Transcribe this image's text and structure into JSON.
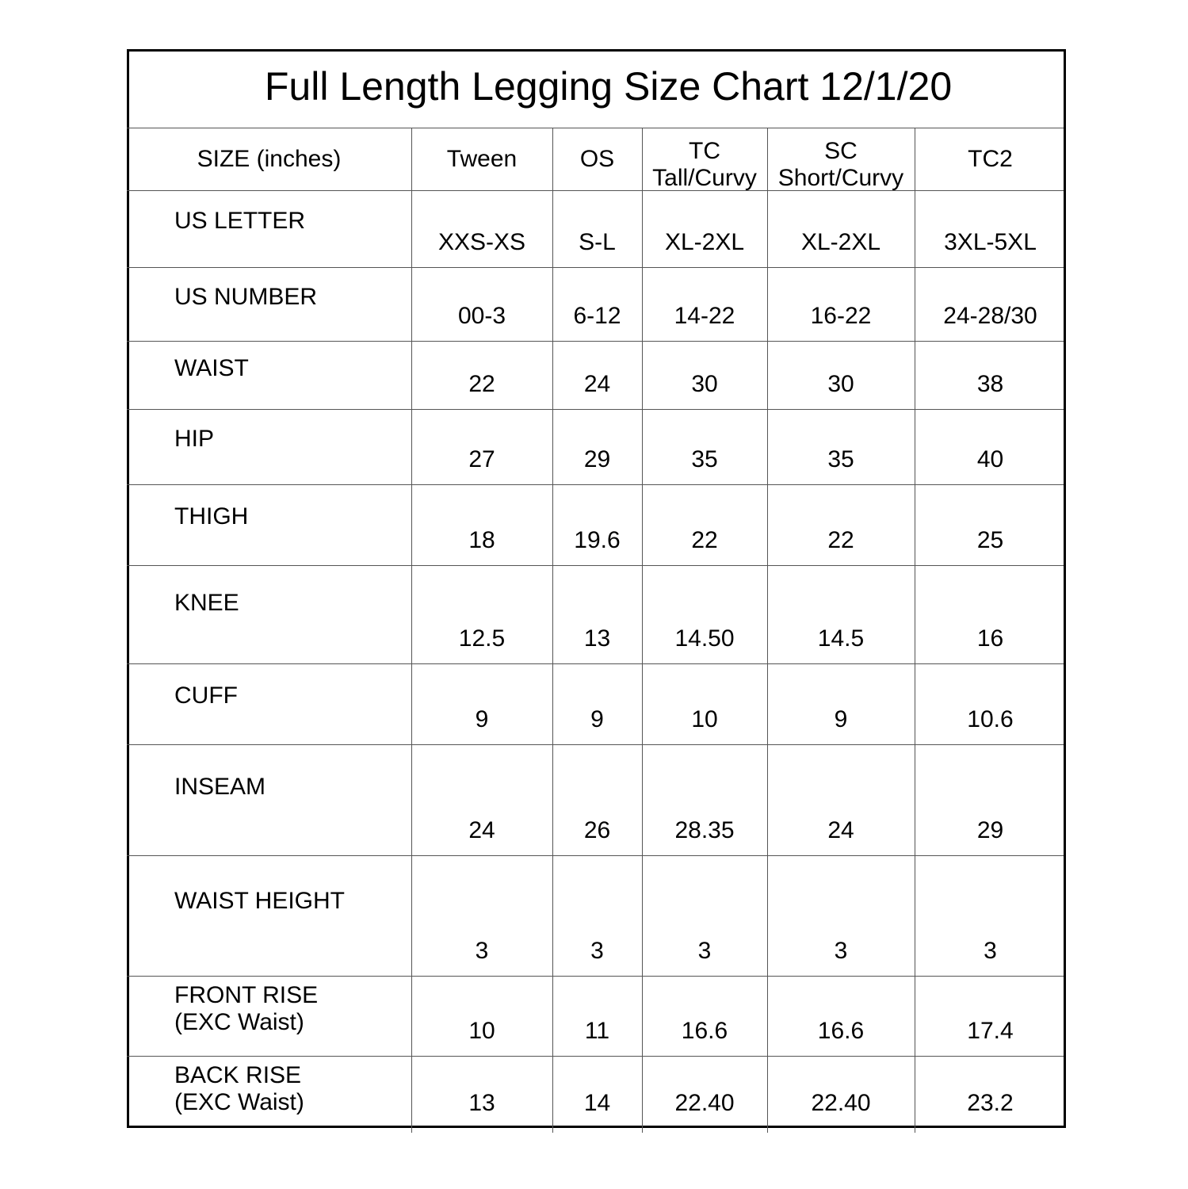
{
  "title": "Full Length Legging Size Chart 12/1/20",
  "columns": [
    {
      "line1": "SIZE (inches)",
      "line2": ""
    },
    {
      "line1": "Tween",
      "line2": ""
    },
    {
      "line1": "OS",
      "line2": ""
    },
    {
      "line1": "TC",
      "line2": "Tall/Curvy"
    },
    {
      "line1": "SC",
      "line2": "Short/Curvy"
    },
    {
      "line1": "TC2",
      "line2": ""
    }
  ],
  "rows": [
    {
      "label": [
        "US LETTER"
      ],
      "values": [
        "XXS-XS",
        "S-L",
        "XL-2XL",
        "XL-2XL",
        "3XL-5XL"
      ]
    },
    {
      "label": [
        "US NUMBER"
      ],
      "values": [
        "00-3",
        "6-12",
        "14-22",
        "16-22",
        "24-28/30"
      ]
    },
    {
      "label": [
        "WAIST"
      ],
      "values": [
        "22",
        "24",
        "30",
        "30",
        "38"
      ]
    },
    {
      "label": [
        "HIP"
      ],
      "values": [
        "27",
        "29",
        "35",
        "35",
        "40"
      ]
    },
    {
      "label": [
        "THIGH"
      ],
      "values": [
        "18",
        "19.6",
        "22",
        "22",
        "25"
      ]
    },
    {
      "label": [
        "KNEE"
      ],
      "values": [
        "12.5",
        "13",
        "14.50",
        "14.5",
        "16"
      ]
    },
    {
      "label": [
        "CUFF"
      ],
      "values": [
        "9",
        "9",
        "10",
        "9",
        "10.6"
      ]
    },
    {
      "label": [
        "INSEAM"
      ],
      "values": [
        "24",
        "26",
        "28.35",
        "24",
        "29"
      ]
    },
    {
      "label": [
        "WAIST HEIGHT"
      ],
      "values": [
        "3",
        "3",
        "3",
        "3",
        "3"
      ]
    },
    {
      "label": [
        "FRONT RISE",
        "(EXC Waist)"
      ],
      "values": [
        "10",
        "11",
        "16.6",
        "16.6",
        "17.4"
      ]
    },
    {
      "label": [
        "BACK RISE",
        "(EXC Waist)"
      ],
      "values": [
        "13",
        "14",
        "22.40",
        "22.40",
        "23.2"
      ]
    }
  ]
}
